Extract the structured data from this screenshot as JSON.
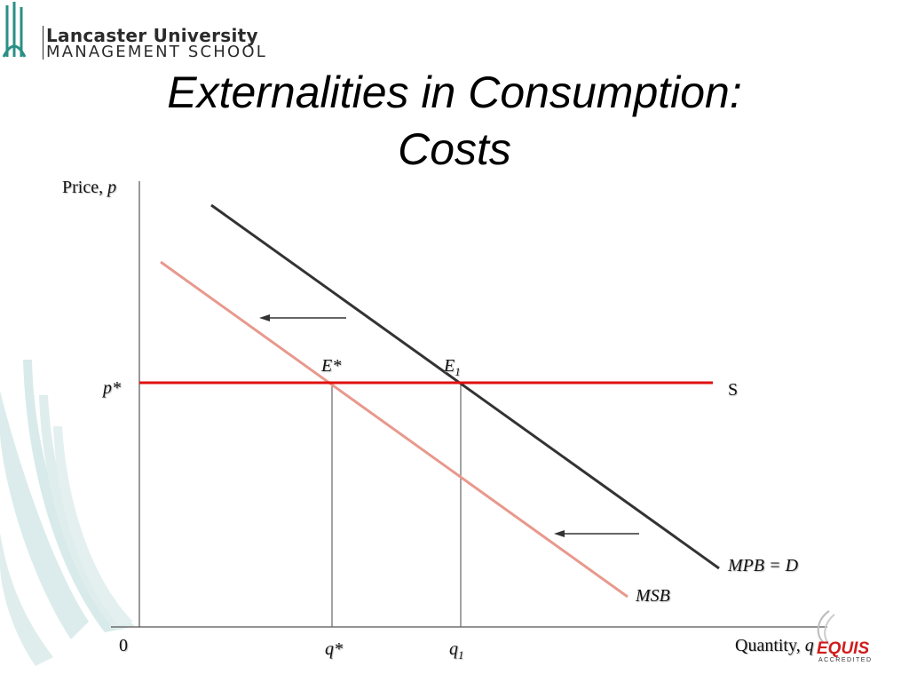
{
  "logo": {
    "line1": "Lancaster University",
    "line2": "MANAGEMENT SCHOOL"
  },
  "title": {
    "line1": "Externalities in Consumption:",
    "line2": "Costs"
  },
  "axes": {
    "y_label_text": "Price, ",
    "y_label_var": "p",
    "x_label_text": "Quantity, ",
    "x_label_var": "q",
    "origin": "0"
  },
  "curves": {
    "mpb": {
      "label": "MPB = D",
      "color": "#333333"
    },
    "msb": {
      "label": "MSB",
      "color": "#e8998d"
    },
    "supply": {
      "label": "S",
      "color": "#e01010"
    }
  },
  "points": {
    "e_star": "E*",
    "e1": "E",
    "e1_sub": "1"
  },
  "ticks": {
    "p_star": "p*",
    "q_star": "q*",
    "q1": "q",
    "q1_sub": "1"
  },
  "badge": {
    "name": "EQUIS",
    "sub": "ACCREDITED"
  }
}
